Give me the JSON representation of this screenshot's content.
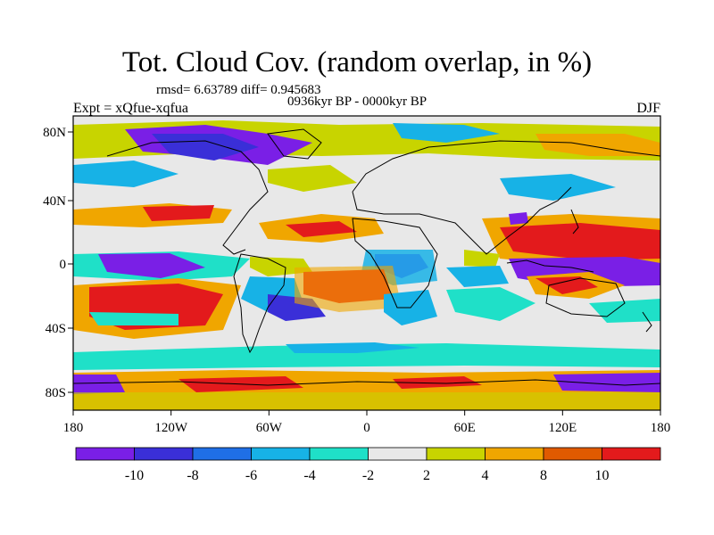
{
  "header": {
    "title": "Tot. Cloud Cov. (random overlap, in %)",
    "stats": "rmsd= 6.63789 diff= 0.945683",
    "period": "0936kyr BP - 0000kyr BP",
    "experiment": "Expt = xQfue-xqfua",
    "season": "DJF"
  },
  "axes": {
    "lon_ticks": [
      "180",
      "120W",
      "60W",
      "0",
      "60E",
      "120E",
      "180"
    ],
    "lat_ticks": [
      "80N",
      "40N",
      "0",
      "40S",
      "80S"
    ]
  },
  "colorbar": {
    "labels": [
      "-10",
      "-8",
      "-6",
      "-4",
      "-2",
      "2",
      "4",
      "8",
      "10"
    ],
    "colors": [
      "#7a1fe6",
      "#3a2fd8",
      "#1f6fe6",
      "#17b2e6",
      "#1fe0c8",
      "#e8e8e8",
      "#c8d400",
      "#f0a600",
      "#e05a00",
      "#e31a1c"
    ]
  },
  "palette": {
    "neutral": "#e8e8e8",
    "coast": "#000000"
  }
}
